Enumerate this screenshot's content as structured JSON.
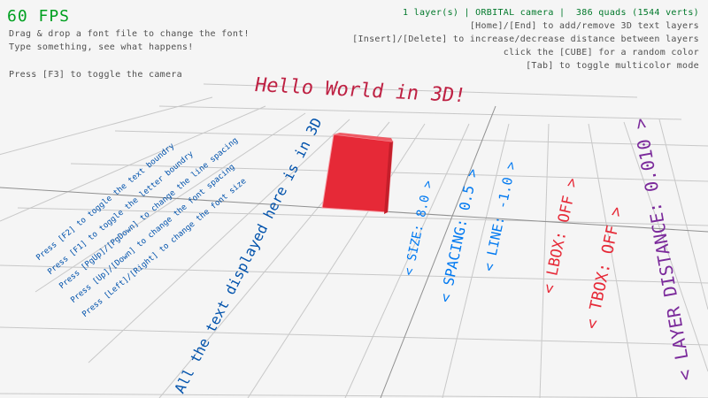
{
  "hud": {
    "fps": "60 FPS",
    "line1": "Drag & drop a font file to change the font!",
    "line2": "Type something, see what happens!",
    "line3": "Press [F3] to toggle the camera",
    "status": "1 layer(s) | ORBITAL camera |  386 quads (1544 verts)",
    "help": [
      "[Home]/[End] to add/remove 3D text layers",
      "[Insert]/[Delete] to increase/decrease distance between layers",
      "click the [CUBE] for a random color",
      "[Tab] to toggle multicolor mode"
    ]
  },
  "scene": {
    "title": "Hello World in 3D!",
    "main_text": "All the text displayed here is in 3D",
    "instructions": [
      "Press [Left]/[Right] to change the font size",
      "Press [Up]/[Down] to change the font spacing",
      "Press [PgUp]/[PgDown] to change the line spacing",
      "Press [F1] to toggle the letter boundry",
      "Press [F2] to toggle the text boundry"
    ],
    "options": [
      {
        "label": "< SIZE: 8.0 >",
        "color": "#0079f1"
      },
      {
        "label": "< SPACING: 0.5 >",
        "color": "#0079f1"
      },
      {
        "label": "< LINE: -1.0 >",
        "color": "#0079f1"
      },
      {
        "label": "< LBOX: OFF >",
        "color": "#e62937"
      },
      {
        "label": "< TBOX: OFF >",
        "color": "#e62937"
      },
      {
        "label": "< LAYER DISTANCE: 0.010 >",
        "color": "#7b2a9b"
      }
    ],
    "cube_color": "#e62937",
    "title_color": "#be2143",
    "text_color": "#0052ac"
  }
}
